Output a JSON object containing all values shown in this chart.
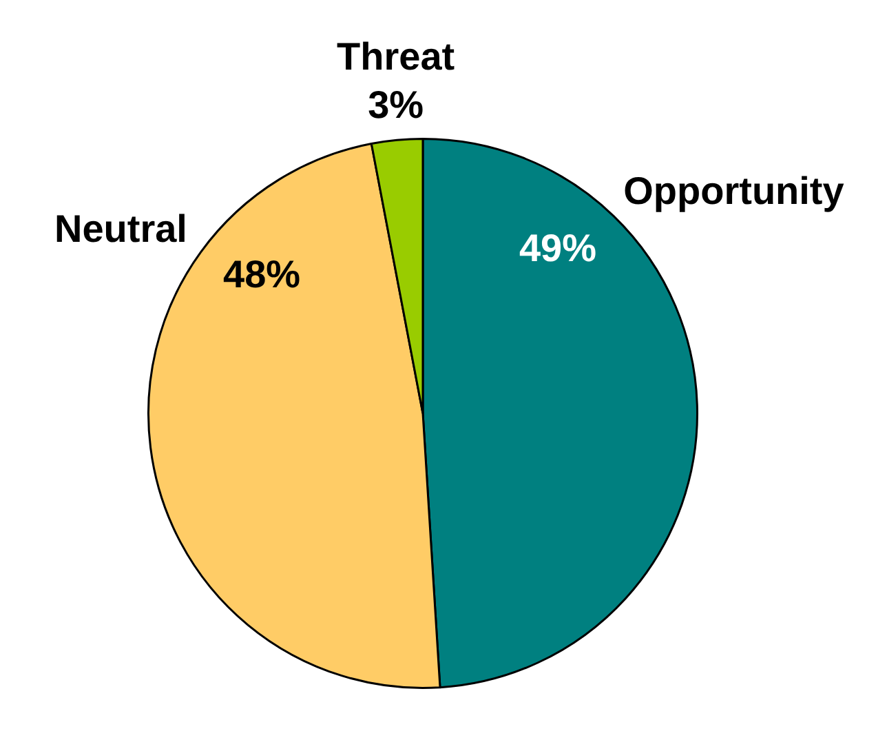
{
  "chart_data": {
    "type": "pie",
    "categories": [
      "Opportunity",
      "Neutral",
      "Threat"
    ],
    "values": [
      49,
      48,
      3
    ],
    "colors": [
      "#008080",
      "#ffcc66",
      "#99cc00"
    ],
    "value_labels": [
      "49%",
      "48%",
      "3%"
    ]
  }
}
